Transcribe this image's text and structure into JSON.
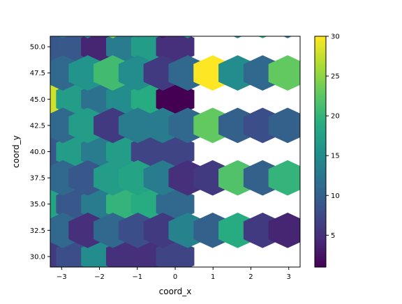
{
  "chart_data": {
    "type": "hexbin",
    "xlabel": "coord_x",
    "ylabel": "coord_y",
    "xlim": [
      -3.3,
      3.3
    ],
    "ylim": [
      29.0,
      51.0
    ],
    "x_ticks": [
      -3,
      -2,
      -1,
      0,
      1,
      2,
      3
    ],
    "y_ticks": [
      30.0,
      32.5,
      35.0,
      37.5,
      40.0,
      42.5,
      45.0,
      47.5,
      50.0
    ],
    "x_tick_labels": [
      "−3",
      "−2",
      "−1",
      "0",
      "1",
      "2",
      "3"
    ],
    "y_tick_labels": [
      "30.0",
      "32.5",
      "35.0",
      "37.5",
      "40.0",
      "42.5",
      "45.0",
      "47.5",
      "50.0"
    ],
    "hex": {
      "x0": -3.0,
      "dx": 1.0,
      "y0": 30.0,
      "dy": 2.5
    },
    "colorbar": {
      "colormap": "viridis",
      "vmin": 1,
      "vmax": 30,
      "ticks": [
        5,
        10,
        15,
        20,
        25,
        30
      ],
      "tick_labels": [
        "5",
        "10",
        "15",
        "20",
        "25",
        "30"
      ]
    },
    "cells_even": [
      [
        2,
        1,
        7,
        16,
        8,
        6,
        8,
        15,
        5,
        5,
        7
      ],
      [
        8,
        22,
        21,
        9,
        13,
        18,
        9,
        13,
        20,
        19,
        11
      ],
      [
        4,
        7,
        11,
        11,
        10,
        9,
        17,
        13,
        17,
        7,
        7
      ],
      [
        5,
        3,
        9,
        7,
        3,
        28,
        17,
        12,
        15,
        19,
        1
      ],
      [
        18,
        9,
        12,
        19,
        21,
        9,
        9,
        4,
        13,
        17,
        5
      ],
      [
        4,
        6,
        4,
        3,
        7,
        3,
        4,
        2,
        6,
        14,
        5
      ]
    ],
    "cells_odd": [
      [
        11,
        5,
        11,
        8,
        6,
        14,
        10,
        19,
        6,
        4
      ],
      [
        11,
        9,
        17,
        18,
        13,
        5,
        6,
        22,
        10,
        20
      ],
      [
        11,
        17,
        6,
        13,
        13,
        11,
        23,
        10,
        8,
        10
      ],
      [
        11,
        16,
        21,
        15,
        6,
        11,
        30,
        15,
        11,
        23
      ],
      [
        13,
        15,
        25,
        16,
        3,
        17,
        null,
        14,
        19,
        12
      ]
    ]
  }
}
